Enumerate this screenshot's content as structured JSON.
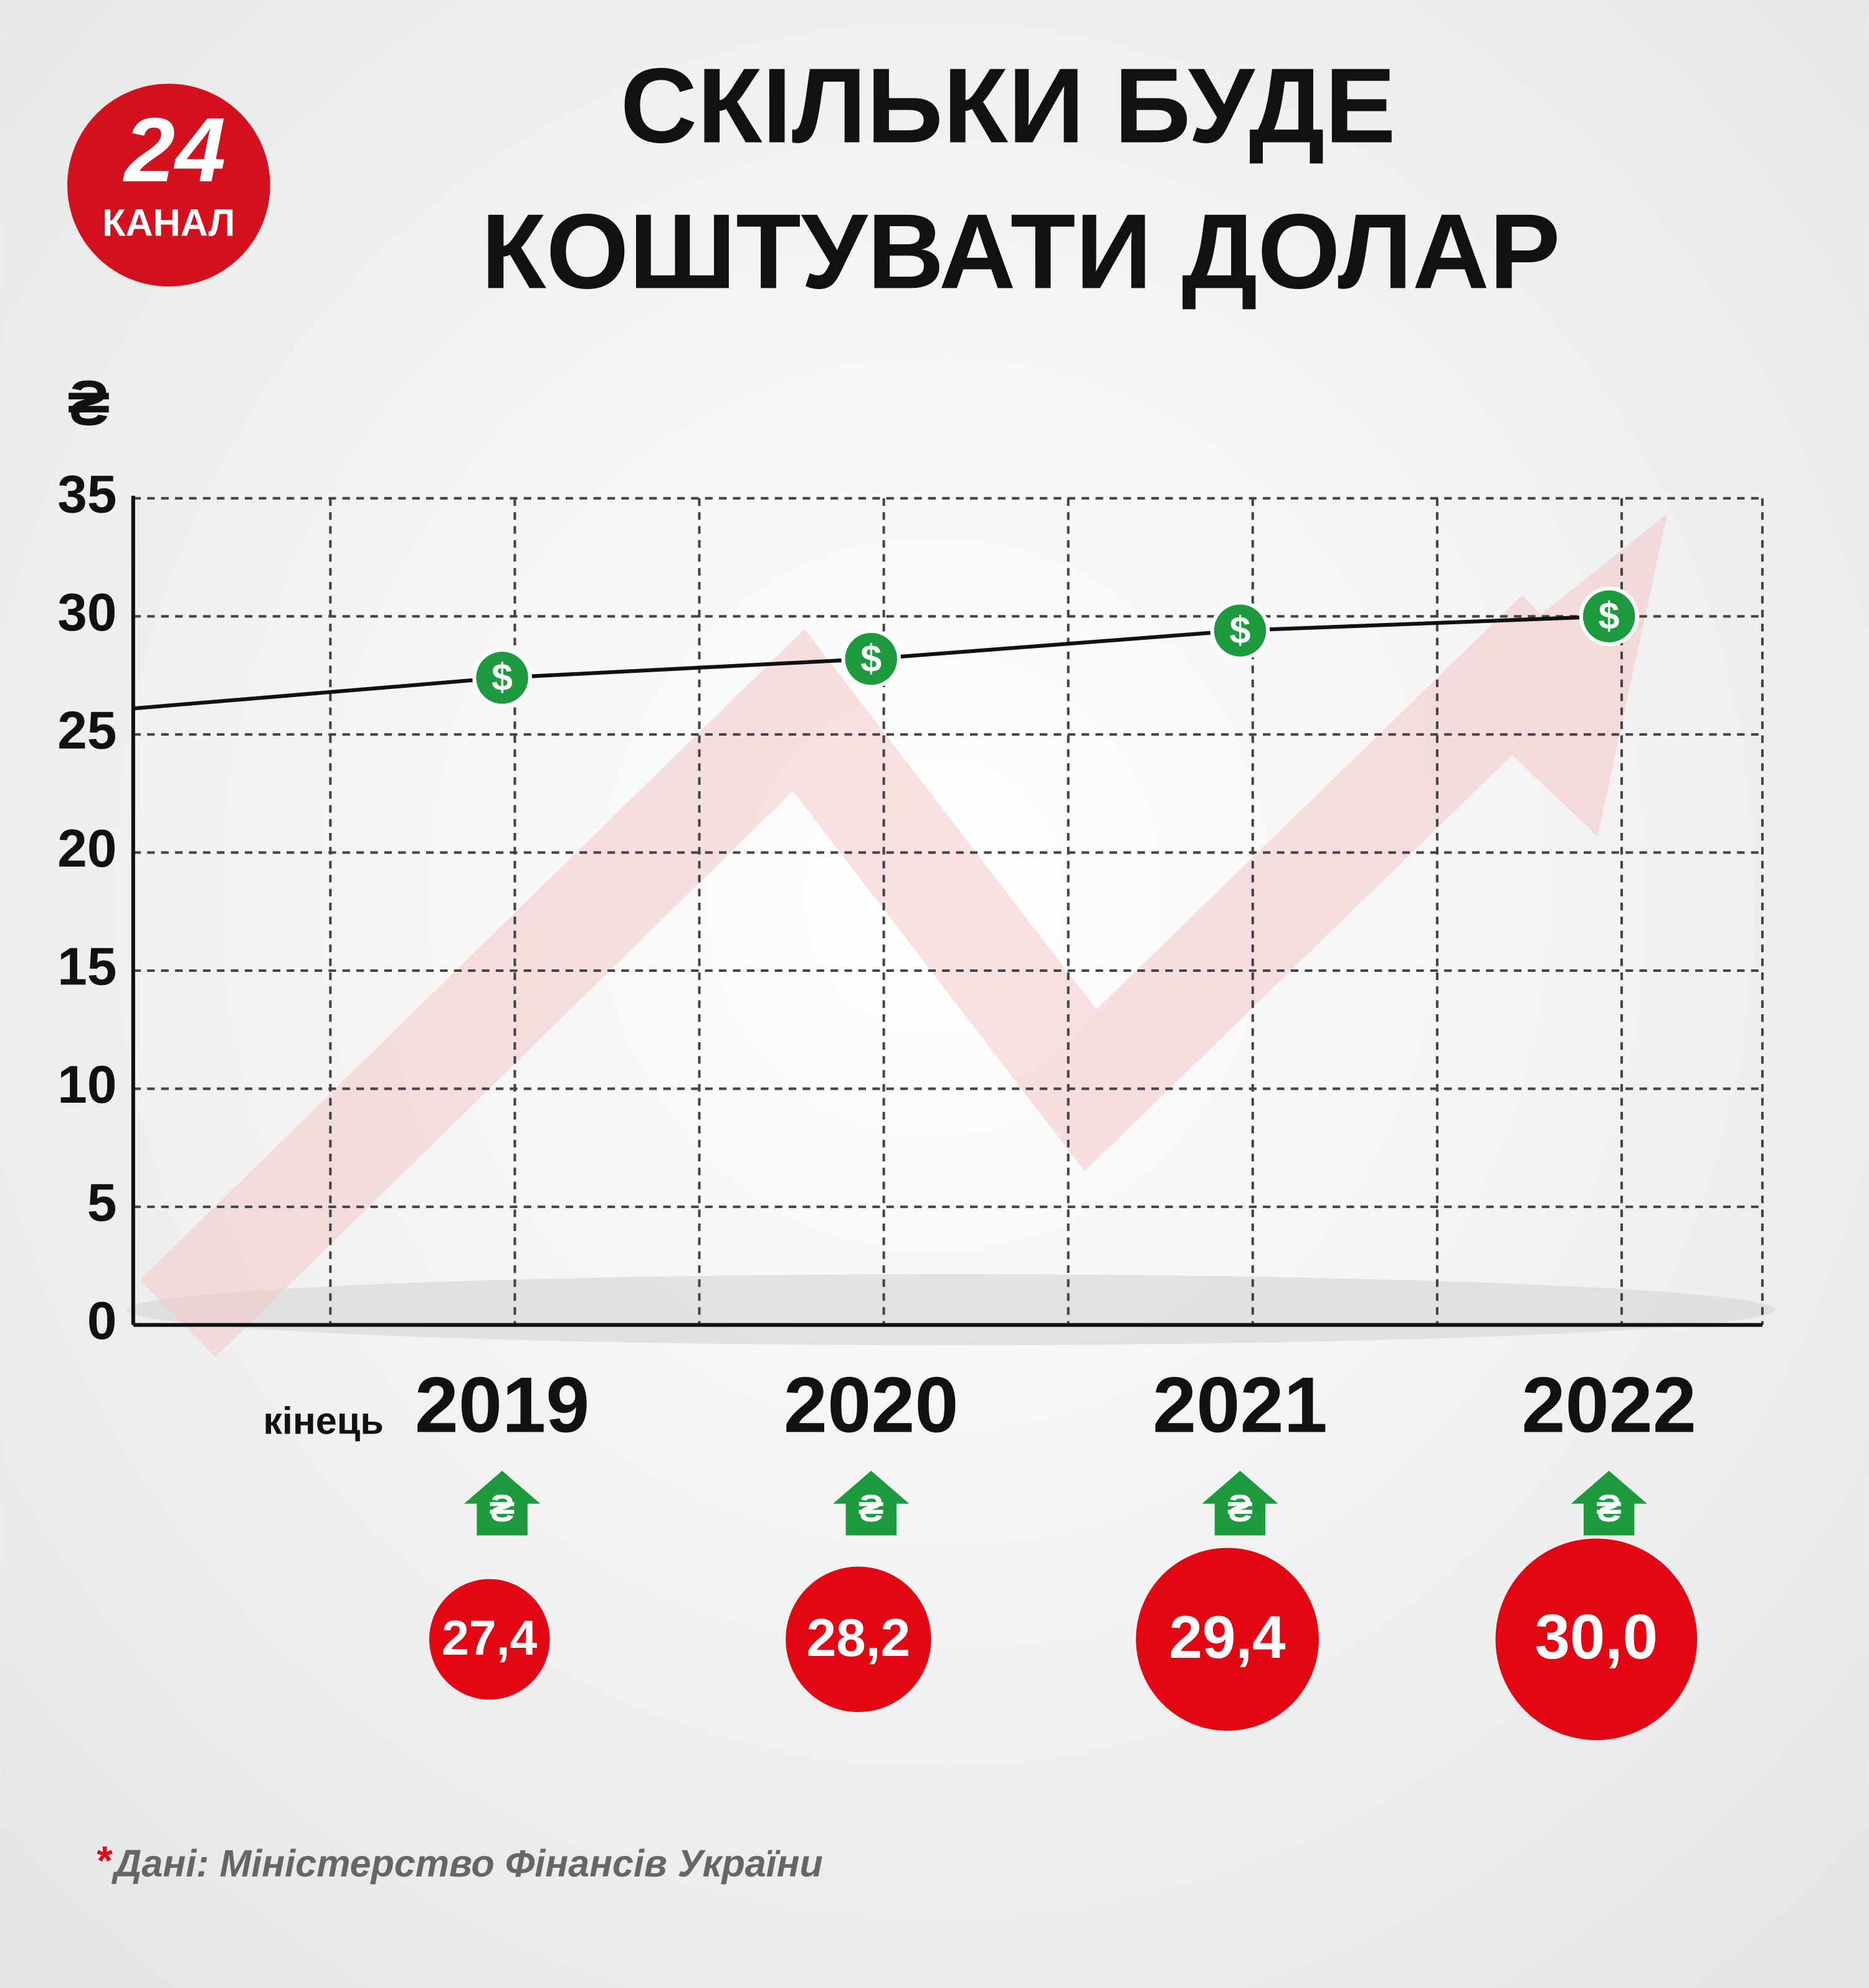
{
  "logo": {
    "number": "24",
    "name": "КАНАЛ"
  },
  "chart_data": {
    "type": "line",
    "title": [
      "СКІЛЬКИ БУДЕ",
      "КОШТУВАТИ ДОЛАР"
    ],
    "ylabel": "₴",
    "x_prefix": "кінець",
    "marker_symbol": "$",
    "categories": [
      null,
      "2019",
      "2020",
      "2021",
      "2022"
    ],
    "values": [
      26.1,
      27.4,
      28.2,
      29.4,
      30.0
    ],
    "value_labels": [
      null,
      "27,4",
      "28,2",
      "29,4",
      "30,0"
    ],
    "ylim": [
      0,
      35
    ],
    "yticks": [
      0,
      5,
      10,
      15,
      20,
      25,
      30,
      35
    ],
    "grid": true,
    "color": "#111111",
    "marker_color": "#1e9a3e",
    "label_color": "#e30613",
    "source_marker": "*",
    "source": "Дані: Міністерство Фінансів України"
  }
}
